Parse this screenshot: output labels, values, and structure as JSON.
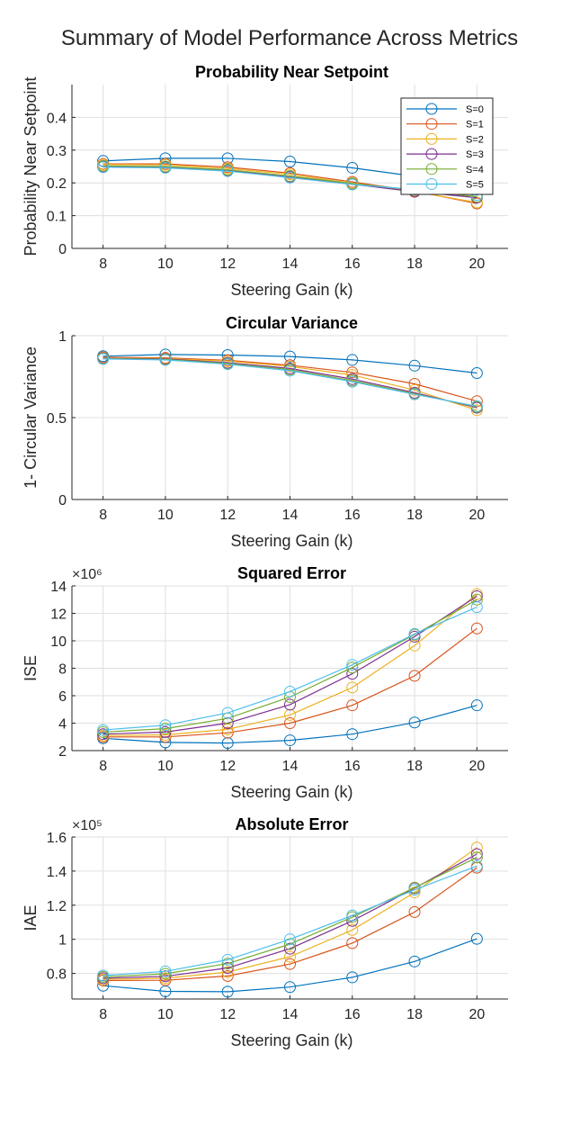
{
  "suptitle": "Summary of Model Performance Across Metrics",
  "chart_data": [
    {
      "type": "line",
      "title": "Probability Near Setpoint",
      "xlabel": "Steering Gain (k)",
      "ylabel": "Probability Near Setpoint",
      "x": [
        8,
        10,
        12,
        14,
        16,
        18,
        20
      ],
      "xlim": [
        7,
        21
      ],
      "ylim": [
        0,
        0.5
      ],
      "yticks": [
        0,
        0.1,
        0.2,
        0.3,
        0.4
      ],
      "ytick_labels": [
        "0",
        "0.1",
        "0.2",
        "0.3",
        "0.4"
      ],
      "exponent": "",
      "grid": true,
      "legend": "top-right",
      "series": [
        {
          "name": "S=0",
          "color": "#0072BD",
          "values": [
            0.267,
            0.275,
            0.275,
            0.265,
            0.246,
            0.22,
            0.18
          ]
        },
        {
          "name": "S=1",
          "color": "#D95319",
          "values": [
            0.258,
            0.258,
            0.248,
            0.23,
            0.203,
            0.175,
            0.137
          ]
        },
        {
          "name": "S=2",
          "color": "#EDB120",
          "values": [
            0.256,
            0.255,
            0.244,
            0.226,
            0.199,
            0.173,
            0.14
          ]
        },
        {
          "name": "S=3",
          "color": "#7E2F8E",
          "values": [
            0.25,
            0.248,
            0.238,
            0.219,
            0.196,
            0.173,
            0.155
          ]
        },
        {
          "name": "S=4",
          "color": "#77AC30",
          "values": [
            0.252,
            0.25,
            0.24,
            0.221,
            0.198,
            0.178,
            0.158
          ]
        },
        {
          "name": "S=5",
          "color": "#4DBEEE",
          "values": [
            0.248,
            0.246,
            0.236,
            0.216,
            0.195,
            0.18,
            0.163
          ]
        }
      ]
    },
    {
      "type": "line",
      "title": "Circular Variance",
      "xlabel": "Steering Gain (k)",
      "ylabel": "1- Circular Variance",
      "x": [
        8,
        10,
        12,
        14,
        16,
        18,
        20
      ],
      "xlim": [
        7,
        21
      ],
      "ylim": [
        0,
        1
      ],
      "yticks": [
        0,
        0.5,
        1
      ],
      "ytick_labels": [
        "0",
        "0.5",
        "1"
      ],
      "exponent": "",
      "grid": true,
      "series": [
        {
          "name": "S=0",
          "color": "#0072BD",
          "values": [
            0.875,
            0.885,
            0.882,
            0.873,
            0.852,
            0.817,
            0.772
          ]
        },
        {
          "name": "S=1",
          "color": "#D95319",
          "values": [
            0.868,
            0.865,
            0.85,
            0.82,
            0.776,
            0.706,
            0.6
          ]
        },
        {
          "name": "S=2",
          "color": "#EDB120",
          "values": [
            0.865,
            0.86,
            0.845,
            0.812,
            0.76,
            0.668,
            0.545
          ]
        },
        {
          "name": "S=3",
          "color": "#7E2F8E",
          "values": [
            0.862,
            0.858,
            0.835,
            0.8,
            0.735,
            0.652,
            0.56
          ]
        },
        {
          "name": "S=4",
          "color": "#77AC30",
          "values": [
            0.86,
            0.855,
            0.83,
            0.793,
            0.726,
            0.646,
            0.565
          ]
        },
        {
          "name": "S=5",
          "color": "#4DBEEE",
          "values": [
            0.858,
            0.852,
            0.826,
            0.786,
            0.719,
            0.642,
            0.57
          ]
        }
      ]
    },
    {
      "type": "line",
      "title": "Squared Error",
      "xlabel": "Steering Gain (k)",
      "ylabel": "ISE",
      "x": [
        8,
        10,
        12,
        14,
        16,
        18,
        20
      ],
      "xlim": [
        7,
        21
      ],
      "ylim": [
        2,
        14
      ],
      "yticks": [
        2,
        4,
        6,
        8,
        10,
        12,
        14
      ],
      "ytick_labels": [
        "2",
        "4",
        "6",
        "8",
        "10",
        "12",
        "14"
      ],
      "exponent": "×10⁶",
      "grid": true,
      "series": [
        {
          "name": "S=0",
          "color": "#0072BD",
          "values": [
            2.9,
            2.6,
            2.55,
            2.75,
            3.2,
            4.05,
            5.3
          ]
        },
        {
          "name": "S=1",
          "color": "#D95319",
          "values": [
            3.0,
            3.0,
            3.3,
            4.0,
            5.3,
            7.45,
            10.9
          ]
        },
        {
          "name": "S=2",
          "color": "#EDB120",
          "values": [
            3.1,
            3.15,
            3.55,
            4.6,
            6.6,
            9.65,
            13.4
          ]
        },
        {
          "name": "S=3",
          "color": "#7E2F8E",
          "values": [
            3.2,
            3.35,
            4.0,
            5.35,
            7.6,
            10.3,
            13.25
          ]
        },
        {
          "name": "S=4",
          "color": "#77AC30",
          "values": [
            3.35,
            3.6,
            4.35,
            5.9,
            8.05,
            10.45,
            13.0
          ]
        },
        {
          "name": "S=5",
          "color": "#4DBEEE",
          "values": [
            3.5,
            3.85,
            4.75,
            6.3,
            8.25,
            10.5,
            12.45
          ]
        }
      ]
    },
    {
      "type": "line",
      "title": "Absolute Error",
      "xlabel": "Steering Gain (k)",
      "ylabel": "IAE",
      "x": [
        8,
        10,
        12,
        14,
        16,
        18,
        20
      ],
      "xlim": [
        7,
        21
      ],
      "ylim": [
        0.65,
        1.6
      ],
      "yticks": [
        0.8,
        1,
        1.2,
        1.4,
        1.6
      ],
      "ytick_labels": [
        "0.8",
        "1",
        "1.2",
        "1.4",
        "1.6"
      ],
      "exponent": "×10⁵",
      "grid": true,
      "series": [
        {
          "name": "S=0",
          "color": "#0072BD",
          "values": [
            0.728,
            0.695,
            0.693,
            0.72,
            0.777,
            0.87,
            1.003
          ]
        },
        {
          "name": "S=1",
          "color": "#D95319",
          "values": [
            0.758,
            0.76,
            0.785,
            0.855,
            0.978,
            1.16,
            1.42
          ]
        },
        {
          "name": "S=2",
          "color": "#EDB120",
          "values": [
            0.765,
            0.772,
            0.808,
            0.898,
            1.055,
            1.275,
            1.538
          ]
        },
        {
          "name": "S=3",
          "color": "#7E2F8E",
          "values": [
            0.772,
            0.783,
            0.832,
            0.945,
            1.108,
            1.3,
            1.5
          ]
        },
        {
          "name": "S=4",
          "color": "#77AC30",
          "values": [
            0.78,
            0.798,
            0.858,
            0.972,
            1.13,
            1.303,
            1.48
          ]
        },
        {
          "name": "S=5",
          "color": "#4DBEEE",
          "values": [
            0.788,
            0.812,
            0.88,
            1.0,
            1.14,
            1.29,
            1.43
          ]
        }
      ]
    }
  ]
}
